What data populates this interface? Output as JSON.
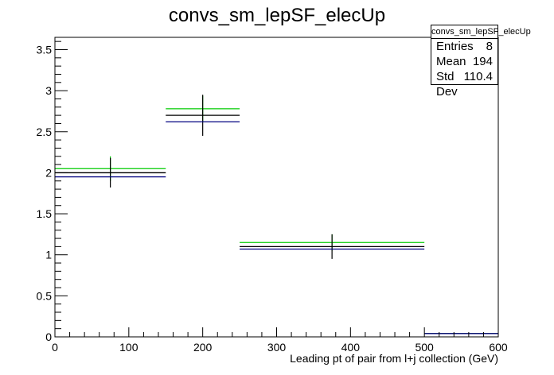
{
  "title": "convs_sm_lepSF_elecUp",
  "stats": {
    "title": "convs_sm_lepSF_elecUp",
    "rows": [
      {
        "label": "Entries",
        "value": "8"
      },
      {
        "label": "Mean",
        "value": "194"
      },
      {
        "label": "Std Dev",
        "value": "110.4"
      }
    ]
  },
  "chart_data": {
    "type": "line",
    "title": "convs_sm_lepSF_elecUp",
    "xlabel": "Leading pt of pair from l+j collection (GeV)",
    "ylabel": "",
    "xlim": [
      0,
      600
    ],
    "ylim": [
      0,
      3.65
    ],
    "x_ticks": [
      "0",
      "100",
      "200",
      "300",
      "400",
      "500",
      "600"
    ],
    "y_ticks": [
      "0",
      "0.5",
      "1",
      "1.5",
      "2",
      "2.5",
      "3",
      "3.5"
    ],
    "grid": false,
    "bins": [
      {
        "x_low": 0,
        "x_high": 150,
        "x_center": 75
      },
      {
        "x_low": 150,
        "x_high": 250,
        "x_center": 200
      },
      {
        "x_low": 250,
        "x_high": 500,
        "x_center": 375
      },
      {
        "x_low": 500,
        "x_high": 600,
        "x_center": 550
      }
    ],
    "series": [
      {
        "color": "#00cc00",
        "values": [
          2.05,
          2.78,
          1.15,
          0.04
        ],
        "errors": [
          0.15,
          0.16,
          0.1,
          0.0
        ]
      },
      {
        "color": "#000000",
        "values": [
          2.0,
          2.7,
          1.1,
          0.04
        ],
        "errors": [
          0.18,
          0.25,
          0.15,
          0.0
        ]
      },
      {
        "color": "#000080",
        "values": [
          1.95,
          2.62,
          1.07,
          0.04
        ],
        "errors": [
          0.0,
          0.0,
          0.0,
          0.0
        ]
      }
    ]
  }
}
